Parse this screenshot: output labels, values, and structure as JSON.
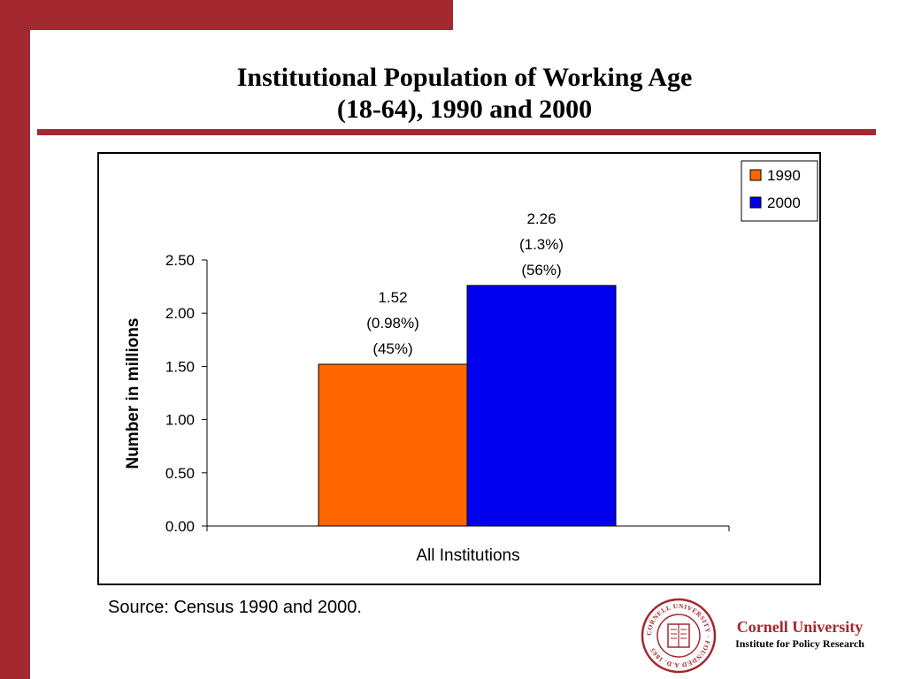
{
  "title_line1": "Institutional Population of Working Age",
  "title_line2": "(18-64), 1990 and 2000",
  "source": "Source: Census 1990 and 2000.",
  "brand": {
    "university": "Cornell University",
    "institute": "Institute for Policy Research"
  },
  "seal_text": "CORNELL UNIVERSITY · FOUNDED A.D. 1865",
  "colors": {
    "accent": "#a4282f",
    "series_1990": "#ff6600",
    "series_2000": "#0000ee"
  },
  "chart_data": {
    "type": "bar",
    "categories": [
      "All Institutions"
    ],
    "series": [
      {
        "name": "1990",
        "values": [
          1.52
        ],
        "labels": [
          "1.52",
          "(0.98%)",
          "(45%)"
        ]
      },
      {
        "name": "2000",
        "values": [
          2.26
        ],
        "labels": [
          "2.26",
          "(1.3%)",
          "(56%)"
        ]
      }
    ],
    "ylabel": "Number in millions",
    "ylim": [
      0,
      2.5
    ],
    "yticks": [
      "0.00",
      "0.50",
      "1.00",
      "1.50",
      "2.00",
      "2.50"
    ],
    "ytick_values": [
      0,
      0.5,
      1.0,
      1.5,
      2.0,
      2.5
    ],
    "grid": false,
    "legend": "top-right"
  }
}
